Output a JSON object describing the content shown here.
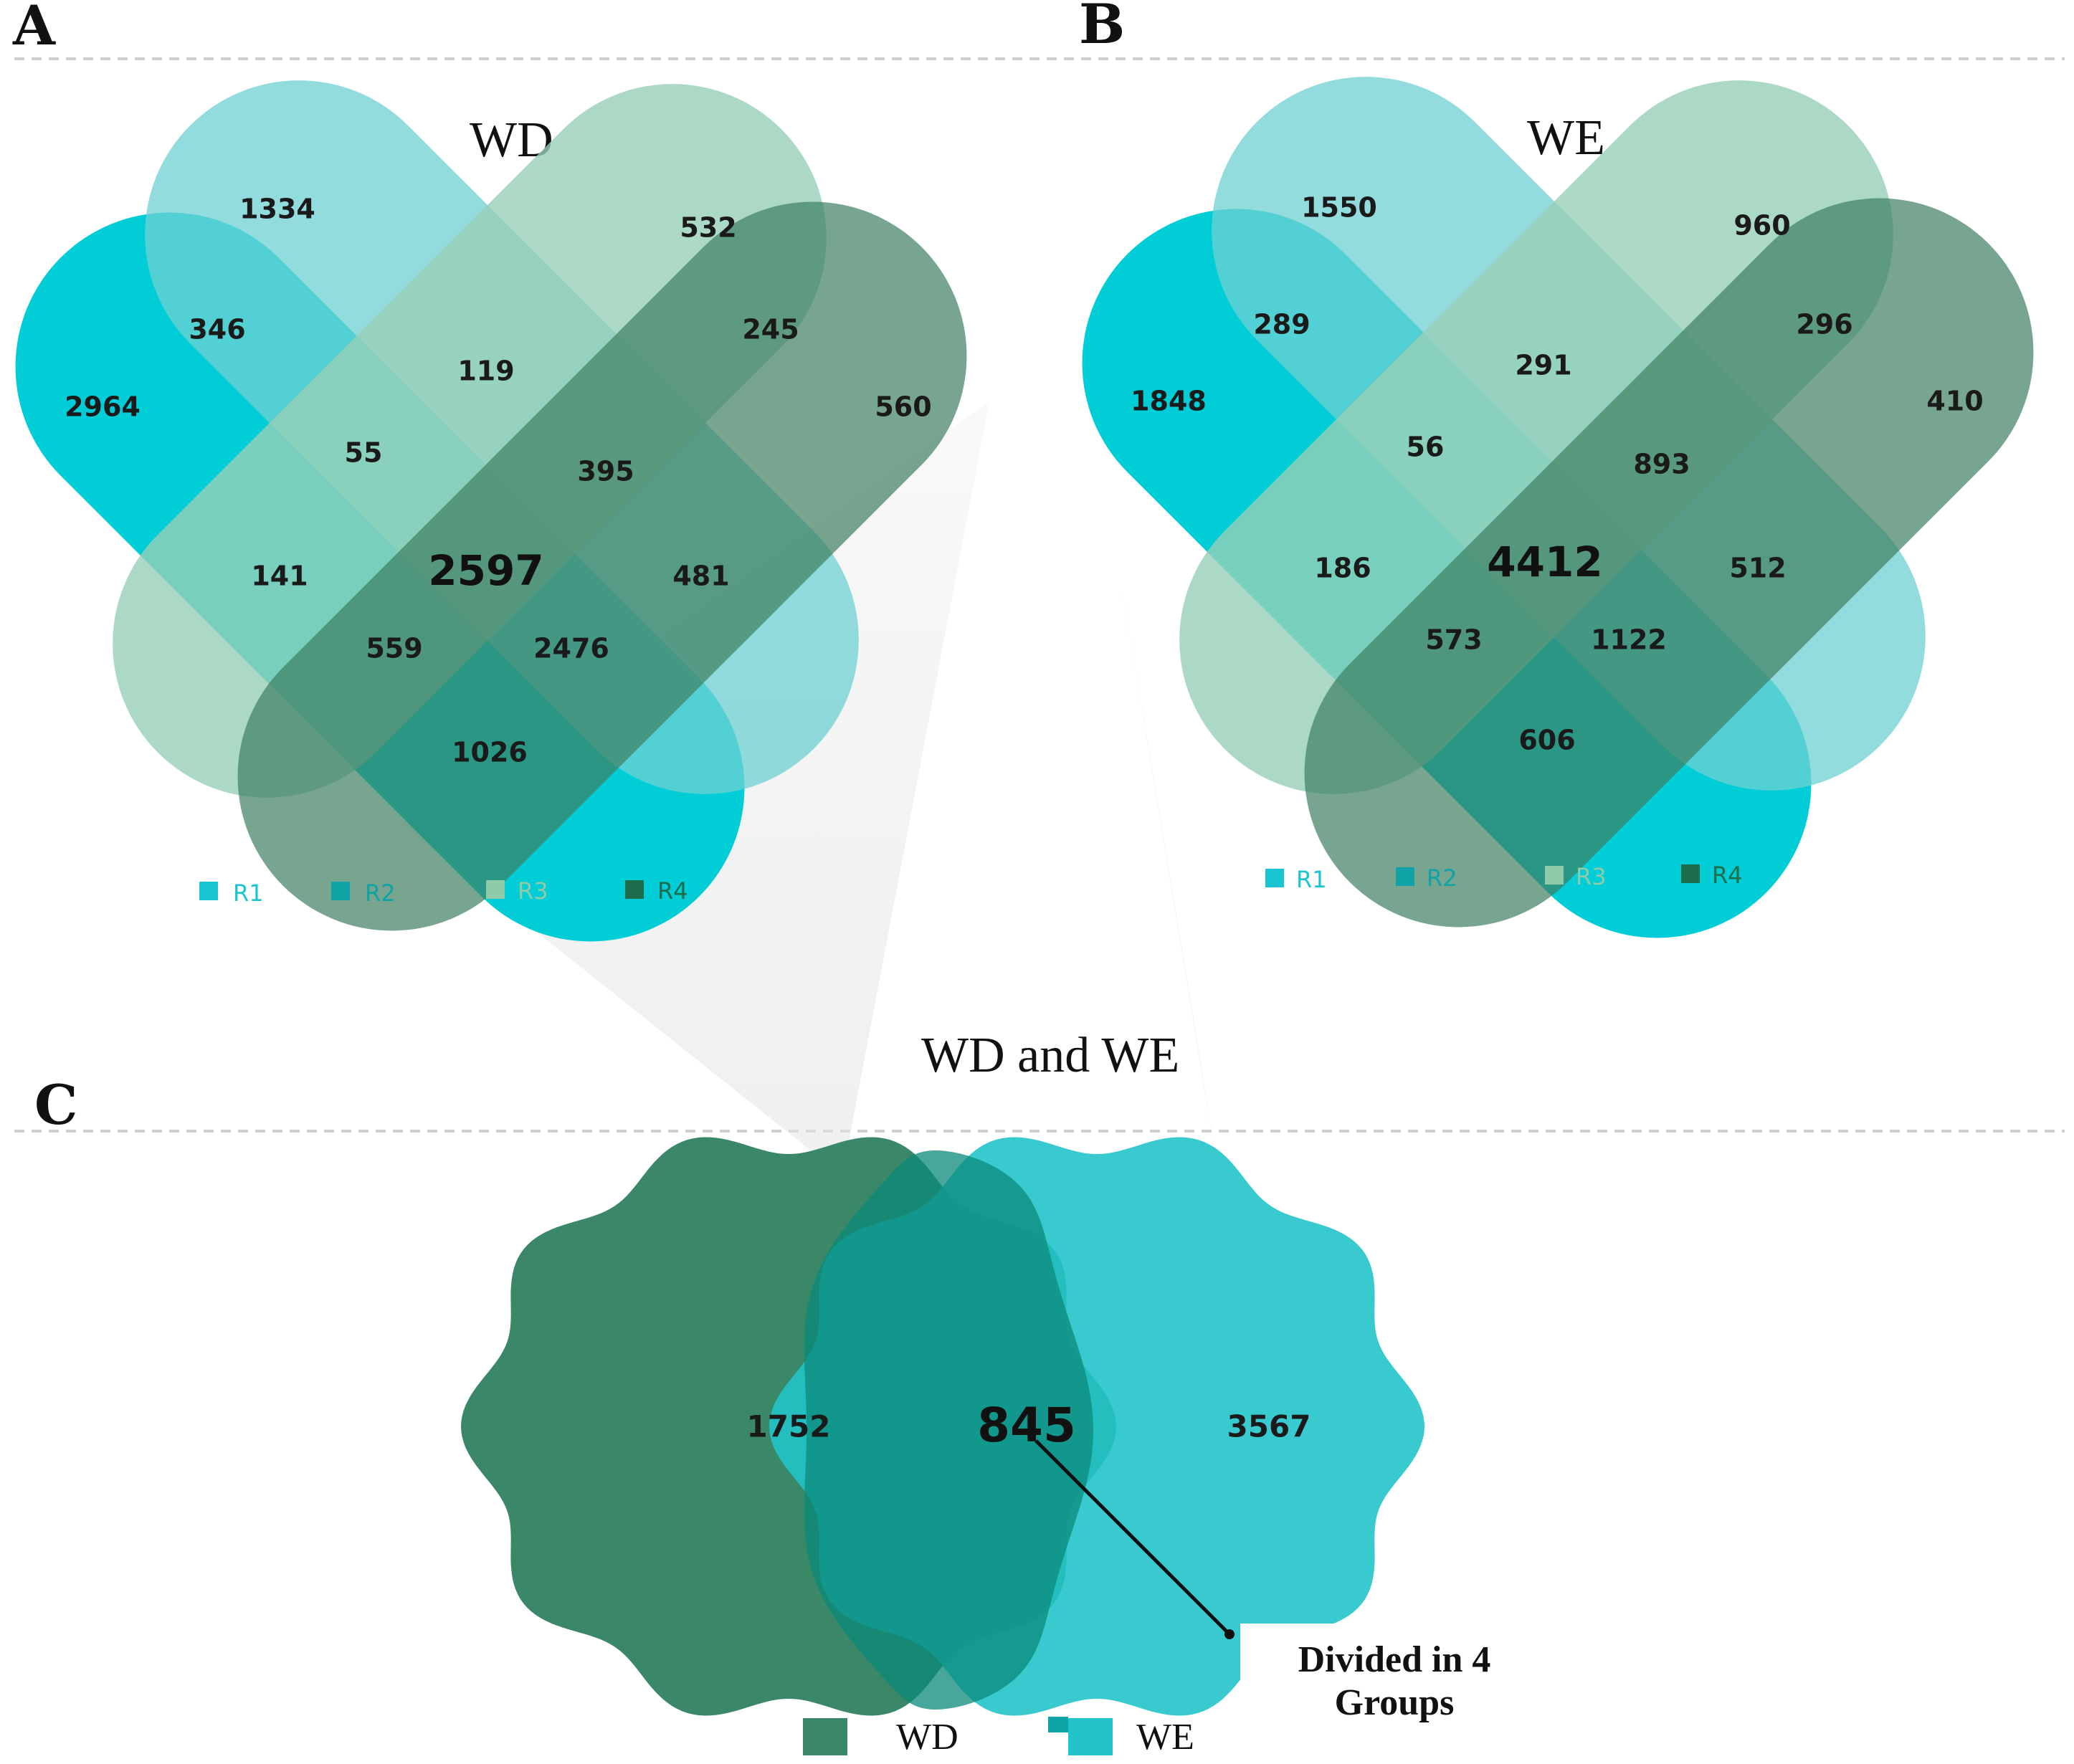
{
  "panels": {
    "A": {
      "letter": "A",
      "title": "WD",
      "values": {
        "r1_only": "2964",
        "r2_only": "1334",
        "r3_only": "532",
        "r4_only": "560",
        "r1_r2": "346",
        "r3_r4": "245",
        "r2_r3": "119",
        "r1_r2_r3": "55",
        "r2_r3_r4": "395",
        "r1_r3": "141",
        "all": "2597",
        "r2_r4": "481",
        "r1_r3_r4": "559",
        "r1_r2_r4": "2476",
        "r1_r4": "1026"
      },
      "legend": [
        "R1",
        "R2",
        "R3",
        "R4"
      ]
    },
    "B": {
      "letter": "B",
      "title": "WE",
      "values": {
        "r1_only": "1848",
        "r2_only": "1550",
        "r3_only": "960",
        "r4_only": "410",
        "r1_r2": "289",
        "r3_r4": "296",
        "r2_r3": "291",
        "r1_r2_r3": "56",
        "r2_r3_r4": "893",
        "r1_r3": "186",
        "all": "4412",
        "r2_r4": "512",
        "r1_r3_r4": "573",
        "r1_r2_r4": "1122",
        "r1_r4": "606"
      },
      "legend": [
        "R1",
        "R2",
        "R3",
        "R4"
      ]
    },
    "C": {
      "letter": "C",
      "title": "WD and WE",
      "wd_only": "1752",
      "shared": "845",
      "we_only": "3567",
      "note_line1": "Divided in 4",
      "note_line2": "Groups",
      "legend": [
        "WD",
        "WE"
      ]
    }
  },
  "colors": {
    "r1": "#00cdd6",
    "r2": "#6fd0d3",
    "r3": "#97cfb6",
    "r4": "#3d7f61",
    "legend_r1": "#19c5d0",
    "legend_r2": "#0fa3a5",
    "legend_r3": "#8fcaa9",
    "legend_r4": "#1d6c4b",
    "wd": "#3b8868",
    "we": "#22c4c9"
  }
}
